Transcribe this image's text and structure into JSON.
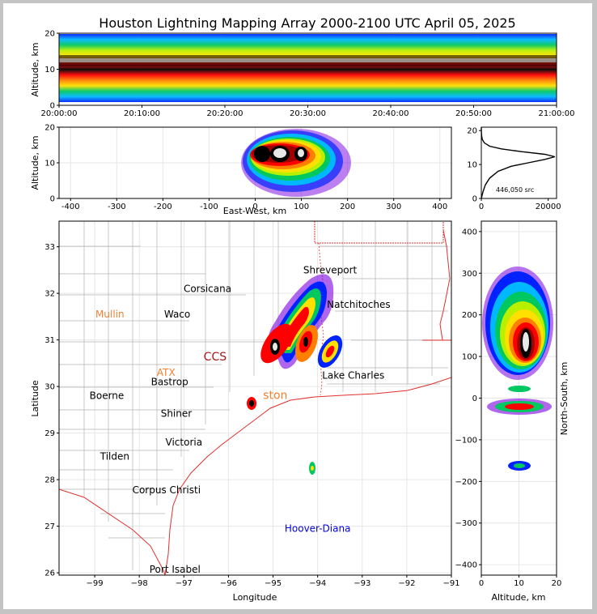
{
  "title": "Houston Lightning Mapping Array 2000-2100 UTC April 05, 2025",
  "colors": {
    "frame": "#000000",
    "grid": "#e6e6e6",
    "coast": "#e03030",
    "counties": "#b4b4b4",
    "scale": [
      "#7a00e0",
      "#0022ff",
      "#00b8ff",
      "#00c860",
      "#b8f000",
      "#ffe000",
      "#ff8000",
      "#ff0000",
      "#a00000",
      "#000000",
      "#909090",
      "#e8e8e8"
    ]
  },
  "chart_data": [
    {
      "id": "time_altitude",
      "type": "heatmap",
      "xlabel": "",
      "ylabel": "Altitude, km",
      "x_ticks": [
        "20:00:00",
        "20:10:00",
        "20:20:00",
        "20:30:00",
        "20:40:00",
        "20:50:00",
        "21:00:00"
      ],
      "xlim": [
        "20:00:00",
        "21:00:00"
      ],
      "y_ticks": [
        0,
        10,
        20
      ],
      "ylim": [
        0,
        20
      ],
      "peak_altitude_km": 12,
      "grid": true
    },
    {
      "id": "eastwest_altitude",
      "type": "heatmap",
      "xlabel": "East-West, km",
      "ylabel": "Altitude, km",
      "x_ticks": [
        -400,
        -300,
        -200,
        -100,
        0,
        100,
        200,
        300,
        400
      ],
      "xlim": [
        -425,
        425
      ],
      "y_ticks": [
        0,
        10,
        20
      ],
      "ylim": [
        0,
        20
      ],
      "source_extent_km": [
        -30,
        210
      ],
      "grid": true
    },
    {
      "id": "altitude_histogram",
      "type": "line",
      "annotation": "446,050 src",
      "x_ticks": [
        0,
        20000
      ],
      "xlim": [
        0,
        22500
      ],
      "y_ticks": [
        0,
        10,
        20
      ],
      "ylim": [
        0,
        21
      ],
      "series": [
        {
          "x": [
            0,
            500,
            1200,
            2500,
            5000,
            9000,
            14000,
            19000,
            22000,
            19000,
            12000,
            6000,
            2500,
            900,
            300,
            80,
            10,
            0
          ],
          "y": [
            0,
            2,
            4,
            6,
            8,
            9.5,
            10.5,
            11.5,
            12.3,
            13,
            13.8,
            14.6,
            15.4,
            16.4,
            17.4,
            18.6,
            20,
            21
          ]
        }
      ]
    },
    {
      "id": "plan_view",
      "type": "heatmap",
      "xlabel": "Longitude",
      "ylabel": "Latitude",
      "x_ticks": [
        -99,
        -98,
        -97,
        -96,
        -95,
        -94,
        -93,
        -92,
        -91
      ],
      "xlim": [
        -99.8,
        -91
      ],
      "y_ticks": [
        26,
        27,
        28,
        29,
        30,
        31,
        32,
        33
      ],
      "ylim": [
        25.95,
        33.55
      ],
      "grid": true,
      "places": [
        {
          "name": "Corsicana",
          "lon": -96.47,
          "lat": 32.1,
          "color": "#000000"
        },
        {
          "name": "Waco",
          "lon": -97.15,
          "lat": 31.55,
          "color": "#000000"
        },
        {
          "name": "Mullin",
          "lon": -98.66,
          "lat": 31.55,
          "color": "#f08030"
        },
        {
          "name": "ATX",
          "lon": -97.4,
          "lat": 30.3,
          "color": "#f08030"
        },
        {
          "name": "Bastrop",
          "lon": -97.32,
          "lat": 30.1,
          "color": "#000000"
        },
        {
          "name": "Boerne",
          "lon": -98.73,
          "lat": 29.8,
          "color": "#000000"
        },
        {
          "name": "Shiner",
          "lon": -97.17,
          "lat": 29.42,
          "color": "#000000"
        },
        {
          "name": "Victoria",
          "lon": -97.0,
          "lat": 28.8,
          "color": "#000000"
        },
        {
          "name": "Tilden",
          "lon": -98.55,
          "lat": 28.5,
          "color": "#000000"
        },
        {
          "name": "Corpus Christi",
          "lon": -97.39,
          "lat": 27.78,
          "color": "#000000"
        },
        {
          "name": "Port Isabel",
          "lon": -97.2,
          "lat": 26.07,
          "color": "#000000"
        },
        {
          "name": "CCS",
          "lon": -96.3,
          "lat": 30.63,
          "color": "#a01818"
        },
        {
          "name": "ston",
          "lon": -94.95,
          "lat": 29.8,
          "color": "#f08030"
        },
        {
          "name": "Shreveport",
          "lon": -93.72,
          "lat": 32.5,
          "color": "#000000"
        },
        {
          "name": "Natchitoches",
          "lon": -93.08,
          "lat": 31.76,
          "color": "#000000"
        },
        {
          "name": "Lake Charles",
          "lon": -93.2,
          "lat": 30.24,
          "color": "#000000"
        },
        {
          "name": "Hoover-Diana",
          "lon": -94.0,
          "lat": 26.95,
          "color": "#0000e0"
        }
      ]
    },
    {
      "id": "altitude_northsouth",
      "type": "heatmap",
      "xlabel": "Altitude, km",
      "ylabel": "North-South, km",
      "x_ticks": [
        0,
        10,
        20
      ],
      "xlim": [
        0,
        20
      ],
      "y_ticks": [
        -400,
        -300,
        -200,
        -100,
        0,
        100,
        200,
        300,
        400
      ],
      "ylim": [
        -425,
        425
      ],
      "grid": true
    }
  ]
}
